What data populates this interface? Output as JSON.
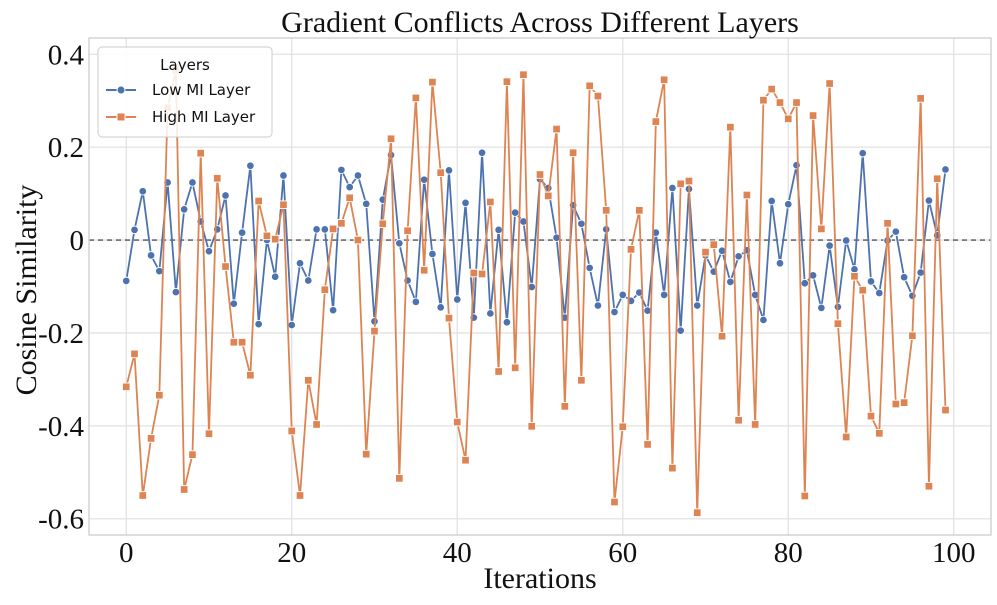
{
  "chart_data": {
    "type": "line",
    "title": "Gradient Conflicts Across Different Layers",
    "xlabel": "Iterations",
    "ylabel": "Cosine Similarity",
    "xlim": [
      -4.5,
      104.5
    ],
    "ylim": [
      -0.635,
      0.435
    ],
    "xticks": [
      0,
      20,
      40,
      60,
      80,
      100
    ],
    "xtick_labels": [
      "0",
      "20",
      "40",
      "60",
      "80",
      "100"
    ],
    "yticks": [
      0.4,
      0.2,
      0,
      -0.2,
      -0.4,
      -0.6
    ],
    "ytick_labels": [
      "0.4",
      "0.2",
      "0",
      "-0.2",
      "-0.4",
      "-0.6"
    ],
    "grid": true,
    "reference_line": {
      "y": 0,
      "style": "dashed"
    },
    "legend": {
      "title": "Layers",
      "placement": "top-left"
    },
    "series": [
      {
        "name": "Low MI Layer",
        "color": "#4c72b0",
        "marker": "circle",
        "values": [
          -0.088,
          0.022,
          0.105,
          -0.033,
          -0.067,
          0.124,
          -0.112,
          0.066,
          0.124,
          0.04,
          -0.024,
          0.023,
          0.096,
          -0.137,
          0.016,
          0.16,
          -0.181,
          0.0,
          -0.079,
          0.139,
          -0.183,
          -0.05,
          -0.087,
          0.023,
          0.023,
          -0.151,
          0.151,
          0.114,
          0.139,
          0.078,
          -0.175,
          0.087,
          0.183,
          -0.007,
          -0.087,
          -0.133,
          0.13,
          -0.03,
          -0.145,
          0.15,
          -0.128,
          0.08,
          -0.167,
          0.188,
          -0.158,
          0.022,
          -0.177,
          0.059,
          0.04,
          -0.101,
          0.131,
          0.112,
          0.005,
          -0.167,
          0.075,
          0.035,
          -0.06,
          -0.141,
          0.023,
          -0.155,
          -0.118,
          -0.131,
          -0.113,
          -0.152,
          0.016,
          -0.118,
          0.112,
          -0.195,
          0.11,
          -0.141,
          -0.033,
          -0.068,
          -0.023,
          -0.09,
          -0.035,
          -0.022,
          -0.118,
          -0.172,
          0.084,
          -0.05,
          0.077,
          0.161,
          -0.093,
          -0.076,
          -0.146,
          -0.012,
          -0.144,
          -0.001,
          -0.063,
          0.187,
          -0.089,
          -0.114,
          -0.001,
          0.018,
          -0.08,
          -0.12,
          -0.07,
          0.085,
          0.01,
          0.152
        ]
      },
      {
        "name": "High MI Layer",
        "color": "#dd8452",
        "marker": "square",
        "values": [
          -0.316,
          -0.245,
          -0.55,
          -0.427,
          -0.334,
          0.285,
          0.365,
          -0.537,
          -0.462,
          0.187,
          -0.417,
          0.133,
          -0.057,
          -0.22,
          -0.22,
          -0.291,
          0.084,
          0.009,
          0.002,
          0.076,
          -0.411,
          -0.55,
          -0.302,
          -0.397,
          -0.107,
          0.024,
          0.036,
          0.091,
          0.0,
          -0.461,
          -0.196,
          0.035,
          0.218,
          -0.513,
          0.02,
          0.306,
          -0.065,
          0.34,
          0.145,
          -0.168,
          -0.392,
          -0.474,
          -0.071,
          -0.073,
          0.082,
          -0.283,
          0.341,
          -0.275,
          0.356,
          -0.401,
          0.141,
          0.095,
          0.239,
          -0.358,
          0.188,
          -0.302,
          0.332,
          0.31,
          0.064,
          -0.564,
          -0.402,
          -0.02,
          0.064,
          -0.44,
          0.255,
          0.345,
          -0.491,
          0.121,
          0.127,
          -0.587,
          -0.026,
          -0.01,
          -0.207,
          0.243,
          -0.388,
          0.097,
          -0.397,
          0.301,
          0.325,
          0.296,
          0.261,
          0.296,
          -0.551,
          0.268,
          0.024,
          0.337,
          -0.18,
          -0.424,
          -0.078,
          -0.108,
          -0.379,
          -0.416,
          0.036,
          -0.353,
          -0.35,
          -0.206,
          0.305,
          -0.53,
          0.132,
          -0.366
        ]
      }
    ]
  }
}
